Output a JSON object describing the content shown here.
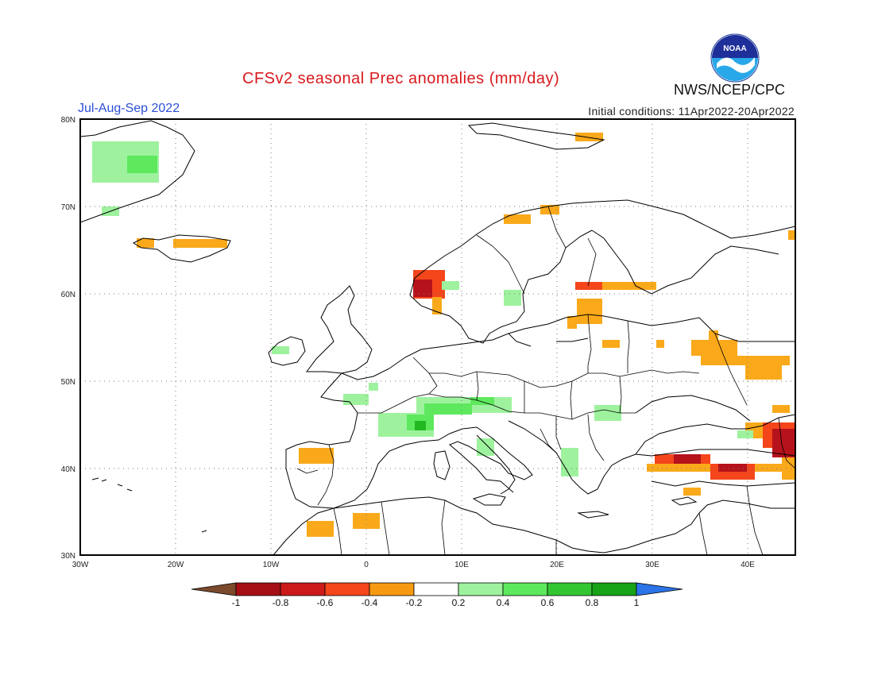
{
  "title": "CFSv2 seasonal Prec anomalies (mm/day)",
  "season": "Jul-Aug-Sep 2022",
  "initial_conditions": "Initial conditions: 11Apr2022-20Apr2022",
  "agency": "NWS/NCEP/CPC",
  "logo": {
    "name": "noaa-logo",
    "text": "NOAA"
  },
  "map": {
    "projection": "lat-lon",
    "lon_range": [
      -30,
      45
    ],
    "lat_range": [
      30,
      80
    ],
    "lat_ticks": [
      "30N",
      "40N",
      "50N",
      "60N",
      "70N",
      "80N"
    ],
    "lon_ticks": [
      "30W",
      "20W",
      "10W",
      "0",
      "10E",
      "20E",
      "30E",
      "40E"
    ],
    "grid": "dotted"
  },
  "colorbar": {
    "colors": [
      "#7b4a2c",
      "#a50f15",
      "#cc1a1a",
      "#f4451b",
      "#f79a13",
      "#ffffff",
      "#9ef29e",
      "#5ee85e",
      "#33c633",
      "#17a217",
      "#2c74e8"
    ],
    "labels": [
      "-1",
      "-0.8",
      "-0.6",
      "-0.4",
      "-0.2",
      "0.2",
      "0.4",
      "0.6",
      "0.8",
      "1"
    ]
  },
  "anomaly_palette": {
    "dry_light": "#f9a91a",
    "dry_mid": "#f4451b",
    "dry_strong": "#b5121b",
    "wet_light": "#9ef29e",
    "wet_mid": "#5ee85e",
    "wet_strong": "#22b822"
  }
}
